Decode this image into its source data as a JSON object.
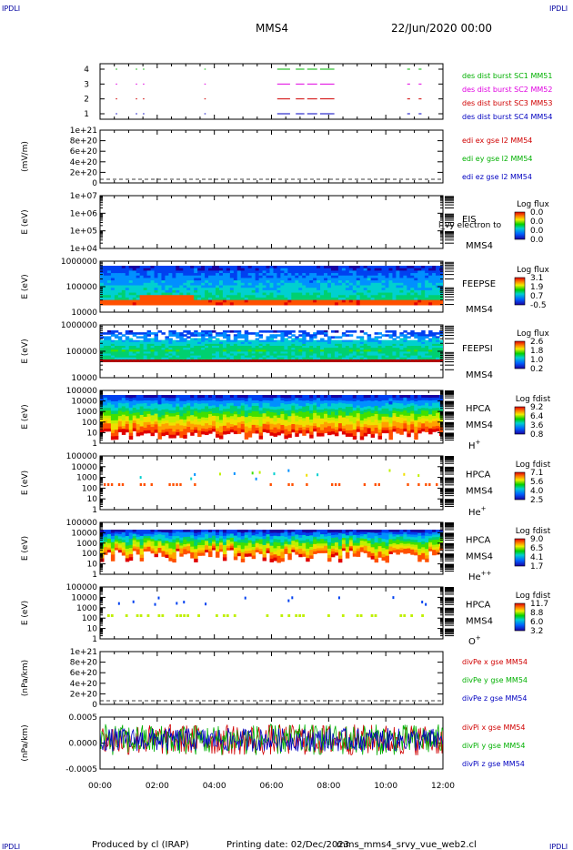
{
  "header": {
    "corner_label": "IPDLI",
    "spacecraft": "MMS4",
    "datetime": "22/Jun/2020 00:00"
  },
  "footer": {
    "produced_by": "Produced by cl (IRAP)",
    "printing_date": "Printing date: 02/Dec/2023",
    "script_name": "mms_mms4_srvy_vue_web2.cl"
  },
  "x_axis": {
    "ticks": [
      "00:00",
      "02:00",
      "04:00",
      "06:00",
      "08:00",
      "10:00",
      "12:00"
    ],
    "range_hours": [
      0,
      12
    ]
  },
  "chart_data": [
    {
      "type": "line",
      "panel": "burst-intervals",
      "yticks": [
        "1",
        "2",
        "3",
        "4"
      ],
      "series": [
        {
          "name": "des dist burst SC1 MM51",
          "color": "#00b000",
          "level": 4
        },
        {
          "name": "des dist burst SC2 MM52",
          "color": "#e000e0",
          "level": 3
        },
        {
          "name": "des dist burst SC3 MM53",
          "color": "#d00000",
          "level": 2
        },
        {
          "name": "des dist burst SC4 MM54",
          "color": "#0000c0",
          "level": 1
        }
      ],
      "intervals_hours": [
        [
          0.55,
          0.6
        ],
        [
          1.25,
          1.3
        ],
        [
          1.5,
          1.55
        ],
        [
          3.65,
          3.7
        ],
        [
          6.2,
          6.65
        ],
        [
          6.85,
          7.15
        ],
        [
          7.25,
          7.6
        ],
        [
          7.7,
          8.2
        ],
        [
          10.75,
          10.85
        ],
        [
          11.15,
          11.25
        ]
      ]
    },
    {
      "type": "line",
      "panel": "edi-e-field",
      "ylabel": "(mV/m)",
      "yticks": [
        "1e+21",
        "8e+20",
        "6e+20",
        "4e+20",
        "2e+20",
        "0"
      ],
      "series": [
        {
          "name": "edi ex gse l2 MM54",
          "color": "#d00000"
        },
        {
          "name": "edi ey gse l2 MM54",
          "color": "#00b000"
        },
        {
          "name": "edi ez gse l2 MM54",
          "color": "#0000c0"
        }
      ]
    },
    {
      "type": "heatmap",
      "panel": "eis",
      "ylabel": "E (eV)",
      "yticks": [
        "1e+07",
        "1e+06",
        "1e+05",
        "1e+04"
      ],
      "instrument": "EIS",
      "sc": "MMS4",
      "overlay_text": "l_vy electron to",
      "colorbar_title": "Log flux",
      "colorbar_ticks": [
        "0.0",
        "0.0",
        "0.0",
        "0.0"
      ]
    },
    {
      "type": "heatmap",
      "panel": "feepse",
      "ylabel": "E (eV)",
      "yticks": [
        "1000000",
        "100000",
        "10000"
      ],
      "instrument": "FEEPSE",
      "sc": "MMS4",
      "colorbar_title": "Log flux",
      "colorbar_ticks": [
        "3.1",
        "1.9",
        "0.7",
        "-0.5"
      ]
    },
    {
      "type": "heatmap",
      "panel": "feepsi",
      "ylabel": "E (eV)",
      "yticks": [
        "1000000",
        "100000",
        "10000"
      ],
      "instrument": "FEEPSI",
      "sc": "MMS4",
      "colorbar_title": "Log flux",
      "colorbar_ticks": [
        "2.6",
        "1.8",
        "1.0",
        "0.2"
      ]
    },
    {
      "type": "heatmap",
      "panel": "hpca-h",
      "ylabel": "E (eV)",
      "yticks": [
        "100000",
        "10000",
        "1000",
        "100",
        "10",
        "1"
      ],
      "instrument": "HPCA",
      "sc": "MMS4",
      "species": "H",
      "species_charge": "+",
      "colorbar_title": "Log fdist",
      "colorbar_ticks": [
        "9.2",
        "6.4",
        "3.6",
        "0.8"
      ]
    },
    {
      "type": "heatmap",
      "panel": "hpca-he",
      "ylabel": "E (eV)",
      "yticks": [
        "100000",
        "10000",
        "1000",
        "100",
        "10",
        "1"
      ],
      "instrument": "HPCA",
      "sc": "MMS4",
      "species": "He",
      "species_charge": "+",
      "colorbar_title": "Log fdist",
      "colorbar_ticks": [
        "7.1",
        "5.6",
        "4.0",
        "2.5"
      ]
    },
    {
      "type": "heatmap",
      "panel": "hpca-he2",
      "ylabel": "E (eV)",
      "yticks": [
        "100000",
        "10000",
        "1000",
        "100",
        "10",
        "1"
      ],
      "instrument": "HPCA",
      "sc": "MMS4",
      "species": "He",
      "species_charge": "++",
      "colorbar_title": "Log fdist",
      "colorbar_ticks": [
        "9.0",
        "6.5",
        "4.1",
        "1.7"
      ]
    },
    {
      "type": "heatmap",
      "panel": "hpca-o",
      "ylabel": "E (eV)",
      "yticks": [
        "100000",
        "10000",
        "1000",
        "100",
        "10",
        "1"
      ],
      "instrument": "HPCA",
      "sc": "MMS4",
      "species": "O",
      "species_charge": "+",
      "colorbar_title": "Log fdist",
      "colorbar_ticks": [
        "11.7",
        "8.8",
        "6.0",
        "3.2"
      ]
    },
    {
      "type": "line",
      "panel": "divpe",
      "ylabel": "(nPa/km)",
      "yticks": [
        "1e+21",
        "8e+20",
        "6e+20",
        "4e+20",
        "2e+20",
        "0"
      ],
      "series": [
        {
          "name": "divPe x gse MM54",
          "color": "#d00000"
        },
        {
          "name": "divPe y gse MM54",
          "color": "#00b000"
        },
        {
          "name": "divPe z gse MM54",
          "color": "#0000c0"
        }
      ]
    },
    {
      "type": "line",
      "panel": "divpi",
      "ylabel": "(nPa/km)",
      "yticks": [
        "0.0005",
        "0.0000",
        "-0.0005"
      ],
      "ylim": [
        -0.0009,
        0.0007
      ],
      "series": [
        {
          "name": "divPi x gse MM54",
          "color": "#d00000"
        },
        {
          "name": "divPi y gse MM54",
          "color": "#00b000"
        },
        {
          "name": "divPi z gse MM54",
          "color": "#0000c0"
        }
      ]
    }
  ]
}
